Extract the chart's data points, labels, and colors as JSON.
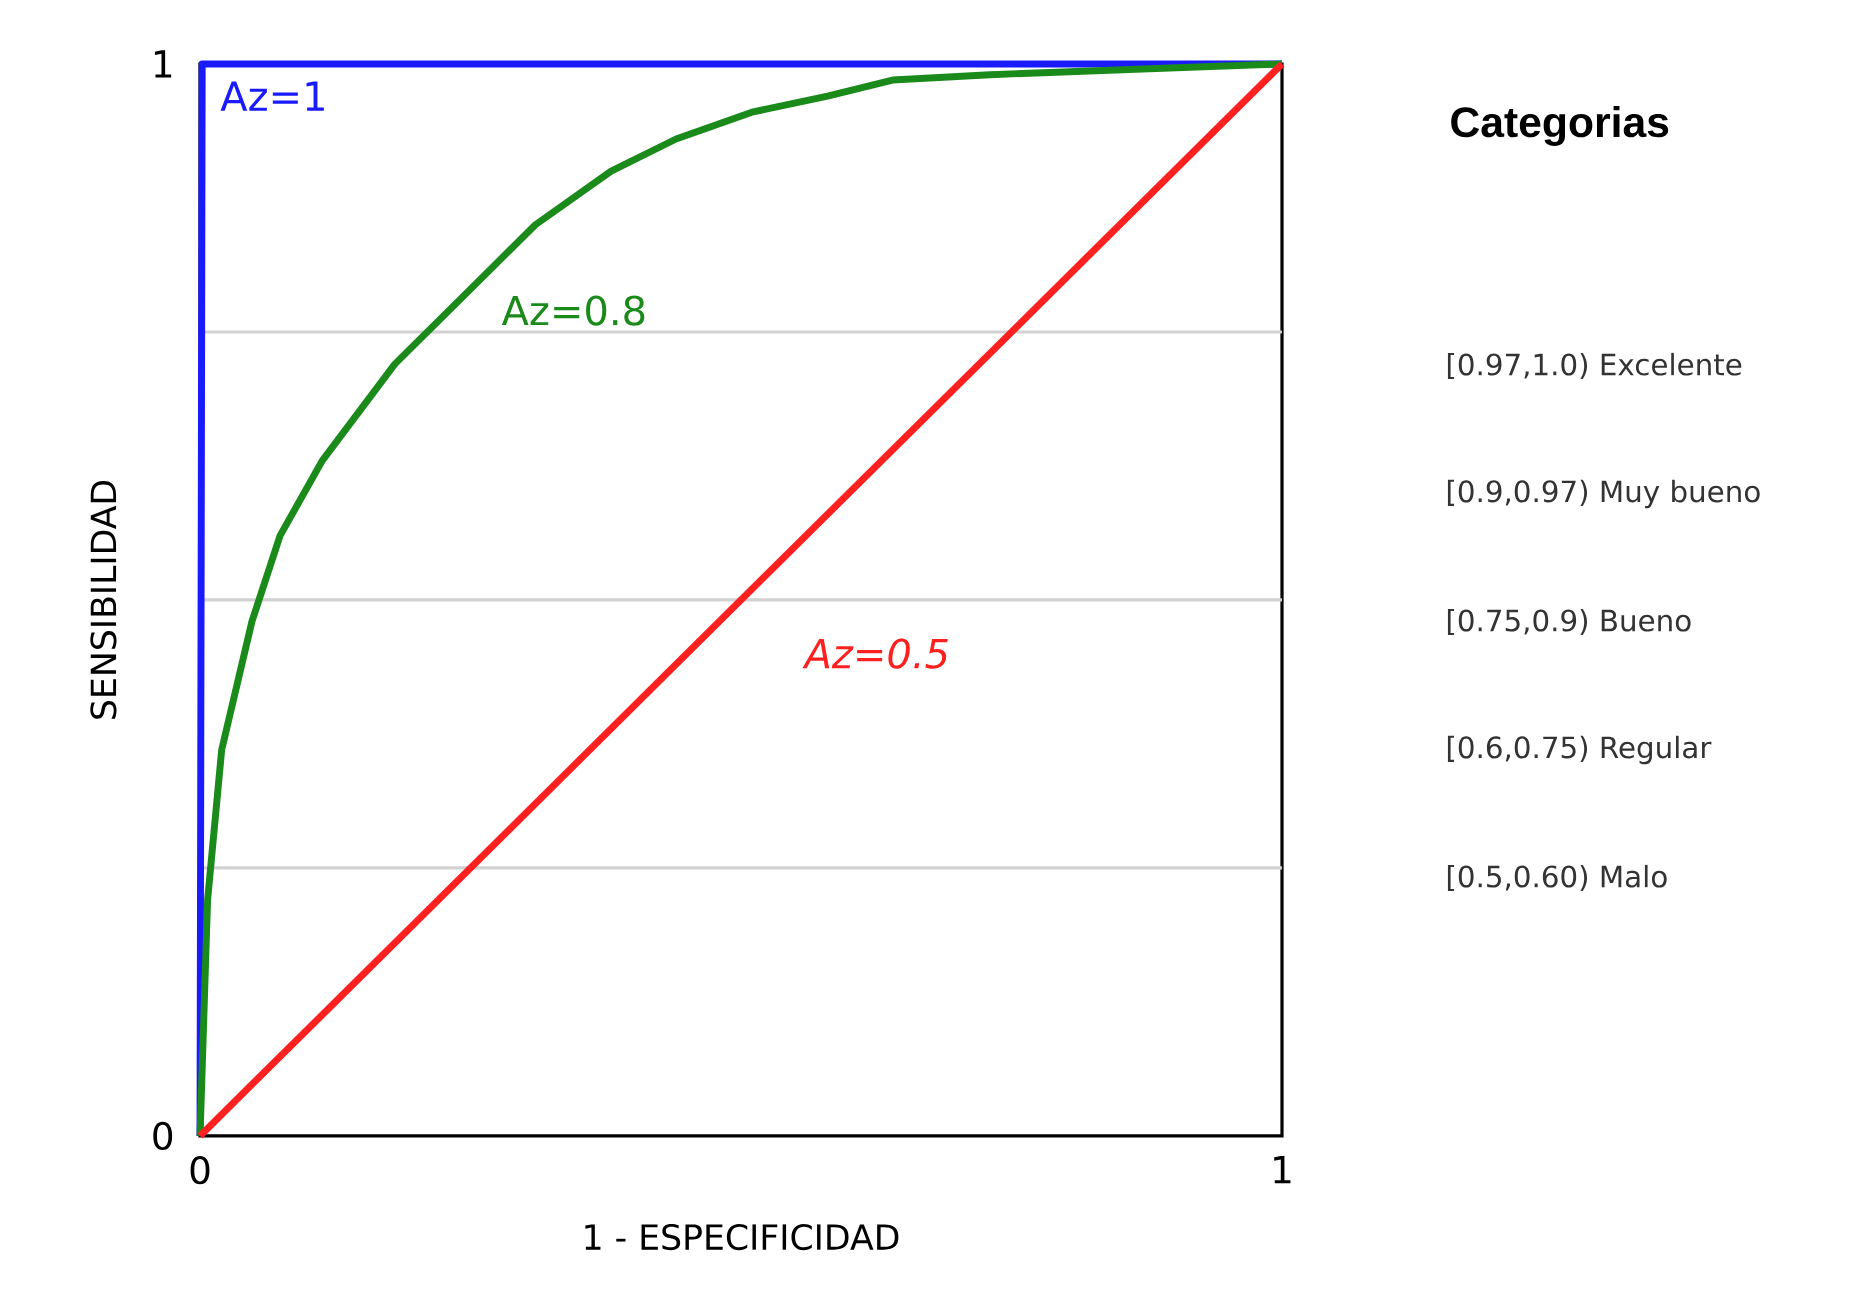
{
  "chart_data": {
    "type": "line",
    "xlabel": "1 - ESPECIFICIDAD",
    "ylabel": "SENSIBILIDAD",
    "xlim": [
      0,
      1
    ],
    "ylim": [
      0,
      1
    ],
    "xticks": [
      0,
      1
    ],
    "yticks": [
      0,
      {
        "value": 0.25,
        "label": null
      },
      {
        "value": 0.5,
        "label": null
      },
      {
        "value": 0.75,
        "label": null
      },
      1
    ],
    "grid": "y",
    "legend": false,
    "marker": "none",
    "line_style": "solid",
    "series": [
      {
        "name": "Az=1",
        "color": "#1a1aff",
        "x": [
          0,
          0.002,
          1
        ],
        "values": [
          0,
          1,
          1
        ]
      },
      {
        "name": "Az=0.8",
        "color": "#1a8a1a",
        "x": [
          0,
          0.007,
          0.02,
          0.048,
          0.074,
          0.113,
          0.18,
          0.25,
          0.31,
          0.38,
          0.44,
          0.51,
          0.58,
          0.64,
          0.73,
          0.89,
          1
        ],
        "values": [
          0,
          0.22,
          0.36,
          0.48,
          0.56,
          0.63,
          0.72,
          0.79,
          0.85,
          0.9,
          0.93,
          0.955,
          0.97,
          0.985,
          0.99,
          0.996,
          1
        ]
      },
      {
        "name": "Az=0.5",
        "color": "#ff2020",
        "x": [
          0,
          1
        ],
        "values": [
          0,
          1
        ]
      }
    ],
    "annotations": [
      "Categorias",
      "[0.97,1.0) Excelente",
      "[0.9,0.97) Muy bueno",
      "[0.75,0.9) Bueno",
      "[0.6,0.75) Regular",
      "[0.5,0.60) Malo"
    ]
  }
}
